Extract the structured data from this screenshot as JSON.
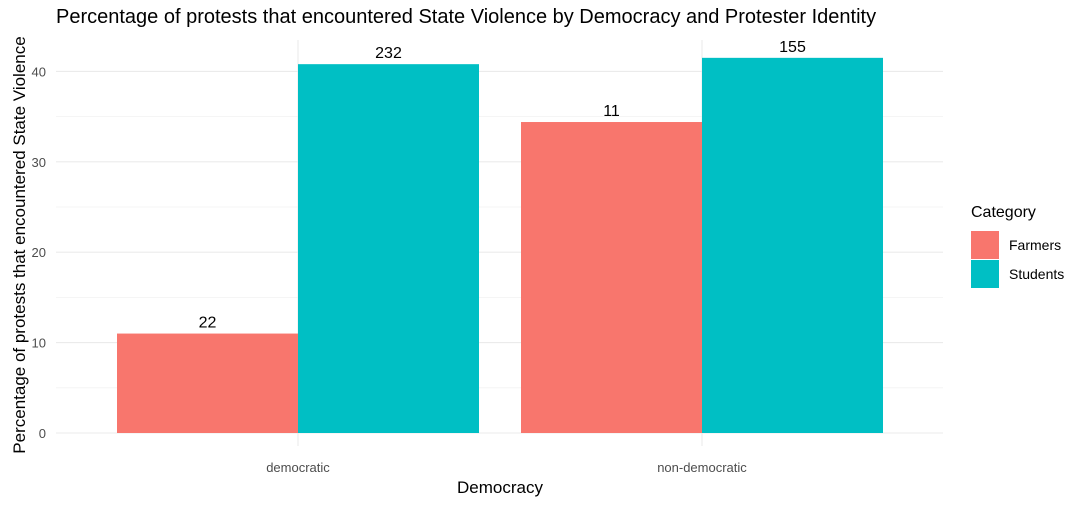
{
  "chart_data": {
    "type": "bar",
    "title": "Percentage of protests that encountered State Violence by Democracy and Protester Identity",
    "xlabel": "Democracy",
    "ylabel": "Percentage of protests that encountered State Violence",
    "categories": [
      "democratic",
      "non-democratic"
    ],
    "series": [
      {
        "name": "Farmers",
        "color": "#F8766D",
        "values": [
          11.0,
          34.4
        ],
        "labels": [
          "22",
          "11"
        ]
      },
      {
        "name": "Students",
        "color": "#00BFC4",
        "values": [
          40.8,
          41.5
        ],
        "labels": [
          "232",
          "155"
        ]
      }
    ],
    "ylim": [
      0,
      42
    ],
    "yticks": [
      0,
      10,
      20,
      30,
      40
    ],
    "grid": true,
    "legend": {
      "title": "Category",
      "position": "right"
    }
  }
}
